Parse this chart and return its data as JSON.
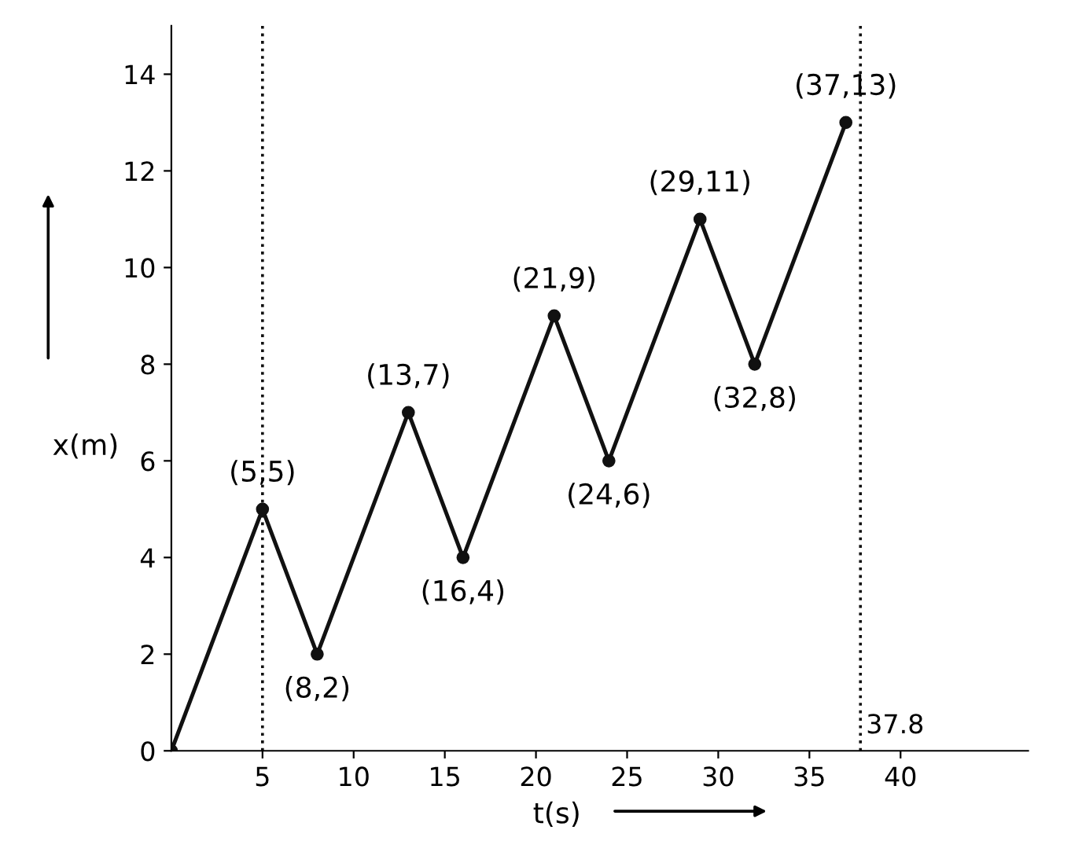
{
  "chart_data": {
    "type": "line",
    "xlabel": "t(s)",
    "ylabel": "x(m)",
    "x": [
      0,
      5,
      8,
      13,
      16,
      21,
      24,
      29,
      32,
      37
    ],
    "series": [
      {
        "color": "#111111",
        "values": [
          0,
          5,
          2,
          7,
          4,
          9,
          6,
          11,
          8,
          13
        ]
      }
    ],
    "xlim": [
      0,
      47
    ],
    "ylim": [
      0,
      15
    ],
    "xticks": [
      5,
      10,
      15,
      20,
      25,
      30,
      35,
      40
    ],
    "yticks": [
      0,
      2,
      4,
      6,
      8,
      10,
      12,
      14
    ],
    "grid": false,
    "marker": "circle",
    "line_style": "solid",
    "ref_lines": [
      {
        "axis": "x",
        "value": 5,
        "label": null,
        "line_style": "dotted",
        "color": "#111111"
      },
      {
        "axis": "x",
        "value": 37.8,
        "label": "37.8",
        "line_style": "dotted",
        "color": "#111111"
      }
    ],
    "annotations": [
      {
        "text": "(5,5)",
        "x": 5,
        "y": 5
      },
      {
        "text": "(8,2)",
        "x": 8,
        "y": 2
      },
      {
        "text": "(13,7)",
        "x": 13,
        "y": 7
      },
      {
        "text": "(16,4)",
        "x": 16,
        "y": 4
      },
      {
        "text": "(21,9)",
        "x": 21,
        "y": 9
      },
      {
        "text": "(24,6)",
        "x": 24,
        "y": 6
      },
      {
        "text": "(29,11)",
        "x": 29,
        "y": 11
      },
      {
        "text": "(32,8)",
        "x": 32,
        "y": 8
      },
      {
        "text": "(37,13)",
        "x": 37,
        "y": 13
      }
    ]
  }
}
